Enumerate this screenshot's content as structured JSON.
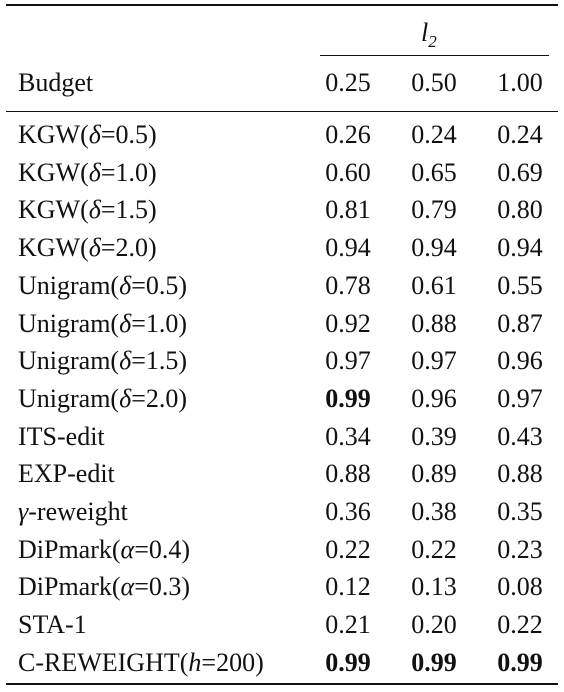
{
  "table": {
    "group_header": {
      "var": "l",
      "sub": "2"
    },
    "budget_label": "Budget",
    "columns": [
      "0.25",
      "0.50",
      "1.00"
    ],
    "rows": [
      {
        "pre": "KGW(",
        "sym": "δ",
        "post": "=0.5)",
        "values": [
          "0.26",
          "0.24",
          "0.24"
        ],
        "bold": [
          false,
          false,
          false
        ]
      },
      {
        "pre": "KGW(",
        "sym": "δ",
        "post": "=1.0)",
        "values": [
          "0.60",
          "0.65",
          "0.69"
        ],
        "bold": [
          false,
          false,
          false
        ]
      },
      {
        "pre": "KGW(",
        "sym": "δ",
        "post": "=1.5)",
        "values": [
          "0.81",
          "0.79",
          "0.80"
        ],
        "bold": [
          false,
          false,
          false
        ]
      },
      {
        "pre": "KGW(",
        "sym": "δ",
        "post": "=2.0)",
        "values": [
          "0.94",
          "0.94",
          "0.94"
        ],
        "bold": [
          false,
          false,
          false
        ]
      },
      {
        "pre": "Unigram(",
        "sym": "δ",
        "post": "=0.5)",
        "values": [
          "0.78",
          "0.61",
          "0.55"
        ],
        "bold": [
          false,
          false,
          false
        ]
      },
      {
        "pre": "Unigram(",
        "sym": "δ",
        "post": "=1.0)",
        "values": [
          "0.92",
          "0.88",
          "0.87"
        ],
        "bold": [
          false,
          false,
          false
        ]
      },
      {
        "pre": "Unigram(",
        "sym": "δ",
        "post": "=1.5)",
        "values": [
          "0.97",
          "0.97",
          "0.96"
        ],
        "bold": [
          false,
          false,
          false
        ]
      },
      {
        "pre": "Unigram(",
        "sym": "δ",
        "post": "=2.0)",
        "values": [
          "0.99",
          "0.96",
          "0.97"
        ],
        "bold": [
          true,
          false,
          false
        ]
      },
      {
        "pre": "ITS-edit",
        "sym": "",
        "post": "",
        "values": [
          "0.34",
          "0.39",
          "0.43"
        ],
        "bold": [
          false,
          false,
          false
        ]
      },
      {
        "pre": "EXP-edit",
        "sym": "",
        "post": "",
        "values": [
          "0.88",
          "0.89",
          "0.88"
        ],
        "bold": [
          false,
          false,
          false
        ]
      },
      {
        "pre": "",
        "sym": "γ",
        "post": "-reweight",
        "values": [
          "0.36",
          "0.38",
          "0.35"
        ],
        "bold": [
          false,
          false,
          false
        ]
      },
      {
        "pre": "DiPmark(",
        "sym": "α",
        "post": "=0.4)",
        "values": [
          "0.22",
          "0.22",
          "0.23"
        ],
        "bold": [
          false,
          false,
          false
        ]
      },
      {
        "pre": "DiPmark(",
        "sym": "α",
        "post": "=0.3)",
        "values": [
          "0.12",
          "0.13",
          "0.08"
        ],
        "bold": [
          false,
          false,
          false
        ]
      },
      {
        "pre": "STA-1",
        "sym": "",
        "post": "",
        "values": [
          "0.21",
          "0.20",
          "0.22"
        ],
        "bold": [
          false,
          false,
          false
        ]
      },
      {
        "pre": "C-REWEIGHT(",
        "sym": "h",
        "post": "=200)",
        "values": [
          "0.99",
          "0.99",
          "0.99"
        ],
        "bold": [
          true,
          true,
          true
        ]
      }
    ]
  }
}
